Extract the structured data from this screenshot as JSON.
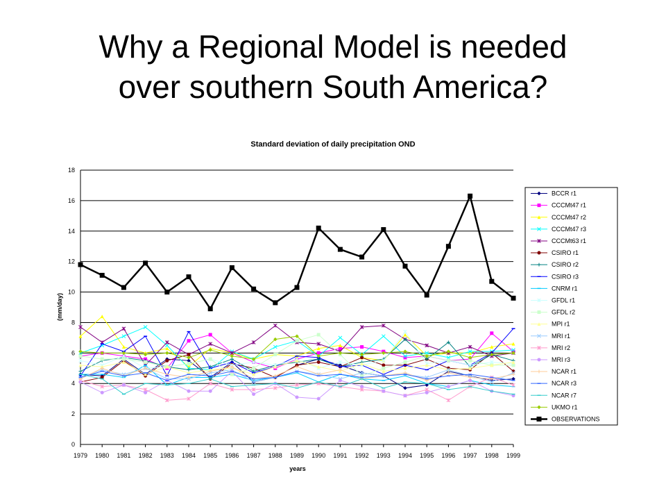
{
  "slide": {
    "title_line1": "Why a Regional Model is needed",
    "title_line2": "over southern South America?"
  },
  "chart_data": {
    "type": "line",
    "title": "Standard deviation of daily precipitation OND",
    "xlabel": "years",
    "ylabel": "(mm/day)",
    "ylim": [
      0,
      18
    ],
    "yticks": [
      0,
      2,
      4,
      6,
      8,
      10,
      12,
      14,
      16,
      18
    ],
    "grid": "horizontal",
    "legend_position": "right",
    "x": [
      "1979",
      "1980",
      "1981",
      "1982",
      "1983",
      "1984",
      "1985",
      "1986",
      "1987",
      "1988",
      "1989",
      "1990",
      "1991",
      "1992",
      "1993",
      "1994",
      "1995",
      "1996",
      "1997",
      "1998",
      "1999"
    ],
    "series": [
      {
        "name": "BCCR r1",
        "color": "#000080",
        "marker": "diamond",
        "values": [
          4.6,
          4.5,
          5.6,
          4.6,
          5.6,
          5.5,
          4.4,
          5.4,
          4.1,
          4.4,
          5.2,
          5.6,
          5.2,
          4.7,
          4.5,
          3.7,
          3.9,
          4.8,
          4.5,
          4.2,
          4.3
        ]
      },
      {
        "name": "CCCMt47 r1",
        "color": "#ff00ff",
        "marker": "square",
        "values": [
          5.8,
          6.0,
          5.8,
          5.6,
          5.0,
          6.8,
          7.2,
          6.0,
          5.4,
          5.0,
          5.6,
          6.0,
          6.3,
          6.4,
          6.1,
          5.7,
          5.8,
          5.5,
          5.6,
          7.3,
          6.1
        ]
      },
      {
        "name": "CCCMt47 r2",
        "color": "#ffff00",
        "marker": "triangle",
        "values": [
          7.1,
          8.4,
          6.4,
          6.0,
          6.3,
          5.1,
          6.3,
          6.0,
          5.6,
          5.9,
          5.8,
          6.3,
          6.5,
          5.7,
          5.5,
          7.2,
          5.8,
          6.0,
          6.0,
          6.4,
          6.6
        ]
      },
      {
        "name": "CCCMt47 r3",
        "color": "#00ffff",
        "marker": "x",
        "values": [
          6.0,
          6.5,
          7.1,
          7.7,
          6.5,
          5.0,
          4.9,
          6.1,
          5.6,
          6.4,
          6.8,
          5.8,
          7.0,
          5.9,
          7.1,
          5.8,
          6.0,
          5.7,
          6.1,
          6.1,
          6.2
        ]
      },
      {
        "name": "CCCMt63 r1",
        "color": "#800080",
        "marker": "star",
        "values": [
          7.7,
          6.7,
          7.6,
          5.2,
          6.7,
          5.9,
          6.6,
          6.0,
          6.7,
          7.8,
          6.7,
          6.6,
          6.1,
          7.7,
          7.8,
          6.9,
          6.5,
          6.0,
          6.4,
          5.8,
          6.0
        ]
      },
      {
        "name": "CSIRO r1",
        "color": "#800000",
        "marker": "circle",
        "values": [
          4.1,
          4.4,
          5.5,
          4.5,
          5.5,
          5.9,
          4.3,
          5.3,
          5.0,
          4.4,
          5.2,
          5.4,
          5.1,
          5.7,
          5.2,
          5.2,
          5.6,
          5.0,
          4.9,
          6.0,
          4.8
        ]
      },
      {
        "name": "CSIRO r2",
        "color": "#008080",
        "marker": "plus",
        "values": [
          4.8,
          5.5,
          5.7,
          5.5,
          5.1,
          4.9,
          5.1,
          5.6,
          4.8,
          5.2,
          5.4,
          5.6,
          5.1,
          5.4,
          5.6,
          6.9,
          5.6,
          6.7,
          5.1,
          5.9,
          5.5
        ]
      },
      {
        "name": "CSIRO r3",
        "color": "#0000ff",
        "marker": "dash",
        "values": [
          4.5,
          6.6,
          6.1,
          7.1,
          4.5,
          7.4,
          5.0,
          5.4,
          4.7,
          5.1,
          5.8,
          5.7,
          5.1,
          5.2,
          4.6,
          5.2,
          4.9,
          5.5,
          5.2,
          6.0,
          7.6
        ]
      },
      {
        "name": "CNRM r1",
        "color": "#00ccff",
        "marker": "dash",
        "values": [
          4.6,
          4.6,
          4.4,
          5.2,
          3.9,
          4.4,
          4.4,
          4.6,
          4.2,
          4.4,
          4.7,
          4.1,
          4.6,
          4.3,
          4.2,
          4.5,
          4.0,
          3.8,
          4.2,
          3.9,
          3.8
        ]
      },
      {
        "name": "GFDL r1",
        "color": "#ccffff",
        "marker": "star",
        "values": [
          5.5,
          5.2,
          5.8,
          5.0,
          5.1,
          5.3,
          5.6,
          5.2,
          5.4,
          5.2,
          5.6,
          5.0,
          5.4,
          5.2,
          5.5,
          7.4,
          5.3,
          5.5,
          5.2,
          5.4,
          5.3
        ]
      },
      {
        "name": "GFDL r2",
        "color": "#ccffcc",
        "marker": "square",
        "values": [
          5.8,
          5.6,
          5.6,
          5.4,
          5.1,
          5.3,
          5.6,
          4.6,
          5.0,
          5.9,
          6.8,
          7.2,
          5.9,
          4.5,
          5.0,
          5.4,
          5.8,
          5.5,
          5.5,
          5.2,
          5.2
        ]
      },
      {
        "name": "MPI r1",
        "color": "#ffff99",
        "marker": "triangle",
        "values": [
          5.2,
          5.1,
          5.4,
          4.6,
          5.1,
          4.7,
          4.9,
          5.0,
          4.6,
          5.1,
          5.5,
          5.1,
          4.8,
          5.3,
          4.8,
          5.0,
          5.2,
          4.9,
          5.0,
          5.2,
          5.4
        ]
      },
      {
        "name": "MRI r1",
        "color": "#99ccff",
        "marker": "x",
        "values": [
          4.4,
          4.9,
          4.6,
          5.0,
          4.3,
          4.3,
          4.7,
          4.9,
          4.1,
          4.4,
          4.8,
          4.6,
          4.3,
          4.7,
          4.5,
          4.6,
          4.4,
          4.9,
          4.5,
          4.1,
          4.7
        ]
      },
      {
        "name": "MRI r2",
        "color": "#ff99cc",
        "marker": "star",
        "values": [
          4.2,
          3.8,
          3.9,
          3.6,
          2.9,
          3.0,
          4.0,
          3.6,
          3.6,
          3.7,
          3.9,
          4.0,
          3.8,
          3.6,
          3.5,
          3.2,
          3.6,
          2.9,
          3.8,
          4.4,
          3.9
        ]
      },
      {
        "name": "MRI r3",
        "color": "#cc99ff",
        "marker": "circle",
        "values": [
          4.1,
          3.4,
          3.9,
          3.4,
          4.2,
          3.5,
          3.5,
          4.8,
          3.3,
          4.0,
          3.1,
          3.0,
          4.2,
          3.8,
          3.5,
          3.2,
          3.4,
          3.8,
          4.2,
          3.5,
          3.2
        ]
      },
      {
        "name": "NCAR r1",
        "color": "#ffcc99",
        "marker": "plus",
        "values": [
          4.3,
          5.0,
          4.5,
          5.0,
          4.6,
          4.4,
          4.8,
          5.1,
          4.3,
          4.5,
          5.1,
          4.6,
          4.9,
          4.3,
          4.5,
          4.7,
          4.2,
          4.7,
          4.4,
          4.3,
          4.6
        ]
      },
      {
        "name": "NCAR r3",
        "color": "#3366ff",
        "marker": "dash",
        "values": [
          4.4,
          4.8,
          4.5,
          4.7,
          4.2,
          4.6,
          4.5,
          4.8,
          4.3,
          4.4,
          4.8,
          4.5,
          4.6,
          4.4,
          4.5,
          4.6,
          4.3,
          4.5,
          4.6,
          4.4,
          4.2
        ]
      },
      {
        "name": "NCAR r7",
        "color": "#33cccc",
        "marker": "dash",
        "values": [
          4.6,
          4.3,
          3.3,
          4.0,
          3.9,
          4.0,
          4.3,
          3.8,
          3.9,
          4.0,
          3.7,
          4.1,
          3.8,
          4.3,
          3.7,
          4.1,
          4.0,
          3.6,
          3.8,
          3.5,
          3.3
        ]
      },
      {
        "name": "UKMO r1",
        "color": "#99cc00",
        "marker": "diamond",
        "values": [
          6.1,
          6.0,
          6.0,
          5.9,
          6.0,
          5.7,
          6.2,
          5.8,
          5.6,
          6.9,
          7.1,
          5.8,
          6.0,
          5.9,
          6.0,
          6.1,
          5.8,
          6.1,
          5.7,
          5.9,
          6.0
        ]
      },
      {
        "name": "OBSERVATIONS",
        "color": "#000000",
        "marker": "square",
        "bold": true,
        "values": [
          11.8,
          11.1,
          10.3,
          11.9,
          10.0,
          11.0,
          8.9,
          11.6,
          10.2,
          9.3,
          10.3,
          14.2,
          12.8,
          12.3,
          14.1,
          11.7,
          9.8,
          13.0,
          16.3,
          10.7,
          9.6
        ]
      }
    ]
  }
}
